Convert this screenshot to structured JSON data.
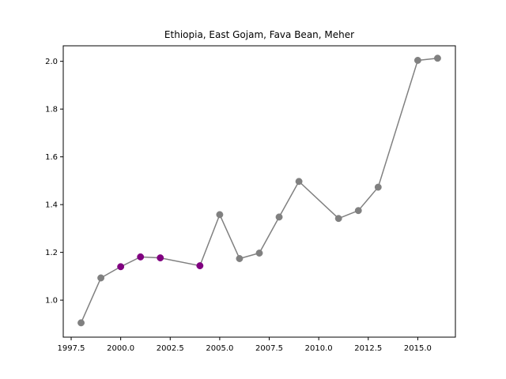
{
  "chart_data": {
    "type": "line",
    "title": "Ethiopia, East Gojam, Fava Bean, Meher",
    "xlabel": "",
    "ylabel": "",
    "xlim": [
      1997.1,
      2016.9
    ],
    "ylim": [
      0.845,
      2.065
    ],
    "x_ticks": [
      1997.5,
      2000.0,
      2002.5,
      2005.0,
      2007.5,
      2010.0,
      2012.5,
      2015.0
    ],
    "x_tick_labels": [
      "1997.5",
      "2000.0",
      "2002.5",
      "2005.0",
      "2007.5",
      "2010.0",
      "2012.5",
      "2015.0"
    ],
    "y_ticks": [
      1.0,
      1.2,
      1.4,
      1.6,
      1.8,
      2.0
    ],
    "y_tick_labels": [
      "1.0",
      "1.2",
      "1.4",
      "1.6",
      "1.8",
      "2.0"
    ],
    "grid": false,
    "line_color": "#808080",
    "series": [
      {
        "x": [
          1998,
          1999,
          2000,
          2001,
          2002,
          2004,
          2005,
          2006,
          2007,
          2008,
          2009,
          2011,
          2012,
          2013,
          2015,
          2016
        ],
        "values": [
          0.905,
          1.093,
          1.14,
          1.181,
          1.177,
          1.144,
          1.358,
          1.174,
          1.197,
          1.348,
          1.497,
          1.342,
          1.375,
          1.473,
          2.004,
          2.013
        ],
        "point_colors": [
          "#808080",
          "#808080",
          "#800080",
          "#800080",
          "#800080",
          "#800080",
          "#808080",
          "#808080",
          "#808080",
          "#808080",
          "#808080",
          "#808080",
          "#808080",
          "#808080",
          "#808080",
          "#808080"
        ]
      }
    ]
  }
}
